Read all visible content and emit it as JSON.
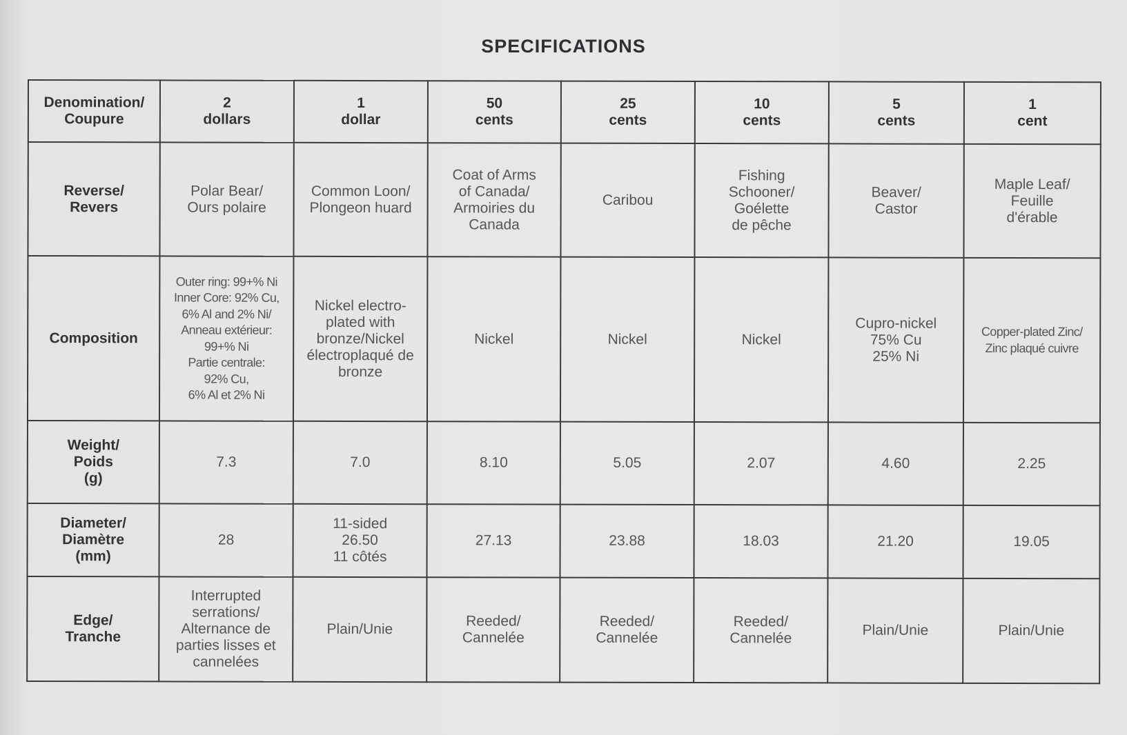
{
  "title": "SPECIFICATIONS",
  "table": {
    "header": [
      "Denomination/\nCoupure",
      "2\ndollars",
      "1\ndollar",
      "50\ncents",
      "25\ncents",
      "10\ncents",
      "5\ncents",
      "1\ncent"
    ],
    "rows": [
      {
        "label": "Reverse/\nRevers",
        "cells": [
          "Polar Bear/\nOurs polaire",
          "Common Loon/\nPlongeon huard",
          "Coat of Arms\nof Canada/\nArmoiries du\nCanada",
          "Caribou",
          "Fishing\nSchooner/\nGoélette\nde pêche",
          "Beaver/\nCastor",
          "Maple Leaf/\nFeuille\nd'érable"
        ]
      },
      {
        "label": "Composition",
        "cells": [
          "Outer ring: 99+% Ni\nInner Core: 92% Cu,\n6% Al and 2% Ni/\nAnneau extérieur:\n99+% Ni\nPartie centrale:\n92% Cu,\n6% Al et 2% Ni",
          "Nickel electro-\nplated with\nbronze/Nickel\nélectroplaqué de\nbronze",
          "Nickel",
          "Nickel",
          "Nickel",
          "Cupro-nickel\n75% Cu\n25% Ni",
          "Copper-plated Zinc/\nZinc plaqué cuivre"
        ]
      },
      {
        "label": "Weight/\nPoids\n(g)",
        "cells": [
          "7.3",
          "7.0",
          "8.10",
          "5.05",
          "2.07",
          "4.60",
          "2.25"
        ]
      },
      {
        "label": "Diameter/\nDiamètre\n(mm)",
        "cells": [
          "28",
          "11-sided\n26.50\n11 côtés",
          "27.13",
          "23.88",
          "18.03",
          "21.20",
          "19.05"
        ]
      },
      {
        "label": "Edge/\nTranche",
        "cells": [
          "Interrupted\nserrations/\nAlternance de\nparties lisses et\ncannelées",
          "Plain/Unie",
          "Reeded/\nCannelée",
          "Reeded/\nCannelée",
          "Reeded/\nCannelée",
          "Plain/Unie",
          "Plain/Unie"
        ]
      }
    ]
  }
}
